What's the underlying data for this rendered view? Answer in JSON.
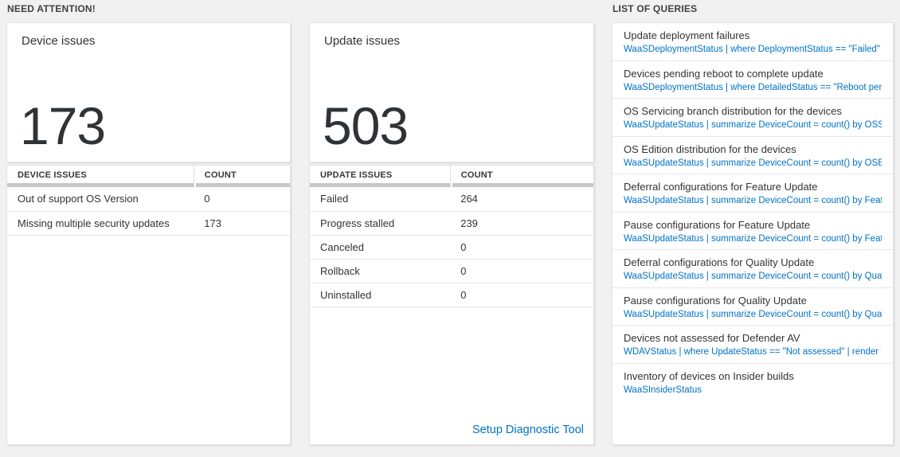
{
  "colors": {
    "accent_blue": "#0072c6",
    "page_background": "#f1f1f1",
    "big_number_color": "#2e3338"
  },
  "need_attention": {
    "section_title": "NEED ATTENTION!",
    "device_card": {
      "title": "Device issues",
      "big_number": "173",
      "table": {
        "headers": [
          "DEVICE ISSUES",
          "COUNT"
        ],
        "rows": [
          [
            "Out of support OS Version",
            "0"
          ],
          [
            "Missing multiple security updates",
            "173"
          ]
        ]
      }
    },
    "update_card": {
      "title": "Update issues",
      "big_number": "503",
      "table": {
        "headers": [
          "UPDATE ISSUES",
          "COUNT"
        ],
        "rows": [
          [
            "Failed",
            "264"
          ],
          [
            "Progress stalled",
            "239"
          ],
          [
            "Canceled",
            "0"
          ],
          [
            "Rollback",
            "0"
          ],
          [
            "Uninstalled",
            "0"
          ]
        ]
      },
      "footer_link": "Setup Diagnostic Tool"
    }
  },
  "queries": {
    "section_title": "LIST OF QUERIES",
    "items": [
      {
        "title": "Update deployment failures",
        "query": "WaaSDeploymentStatus | where DeploymentStatus == \"Failed\" |..."
      },
      {
        "title": "Devices pending reboot to complete update",
        "query": "WaaSDeploymentStatus | where DetailedStatus == \"Reboot pend..."
      },
      {
        "title": "OS Servicing branch distribution for the devices",
        "query": "WaaSUpdateStatus | summarize DeviceCount = count() by OSSer..."
      },
      {
        "title": "OS Edition distribution for the devices",
        "query": "WaaSUpdateStatus | summarize DeviceCount = count() by OSEdit..."
      },
      {
        "title": "Deferral configurations for Feature Update",
        "query": "WaaSUpdateStatus | summarize DeviceCount = count() by Featur..."
      },
      {
        "title": "Pause configurations for Feature Update",
        "query": "WaaSUpdateStatus | summarize DeviceCount = count() by Featur..."
      },
      {
        "title": "Deferral configurations for Quality Update",
        "query": "WaaSUpdateStatus | summarize DeviceCount = count() by Qualit..."
      },
      {
        "title": "Pause configurations for Quality Update",
        "query": "WaaSUpdateStatus | summarize DeviceCount = count() by Qualit..."
      },
      {
        "title": "Devices not assessed for Defender AV",
        "query": "WDAVStatus | where UpdateStatus == \"Not assessed\" | render ta..."
      },
      {
        "title": "Inventory of devices on Insider builds",
        "query": "WaaSInsiderStatus"
      }
    ]
  }
}
